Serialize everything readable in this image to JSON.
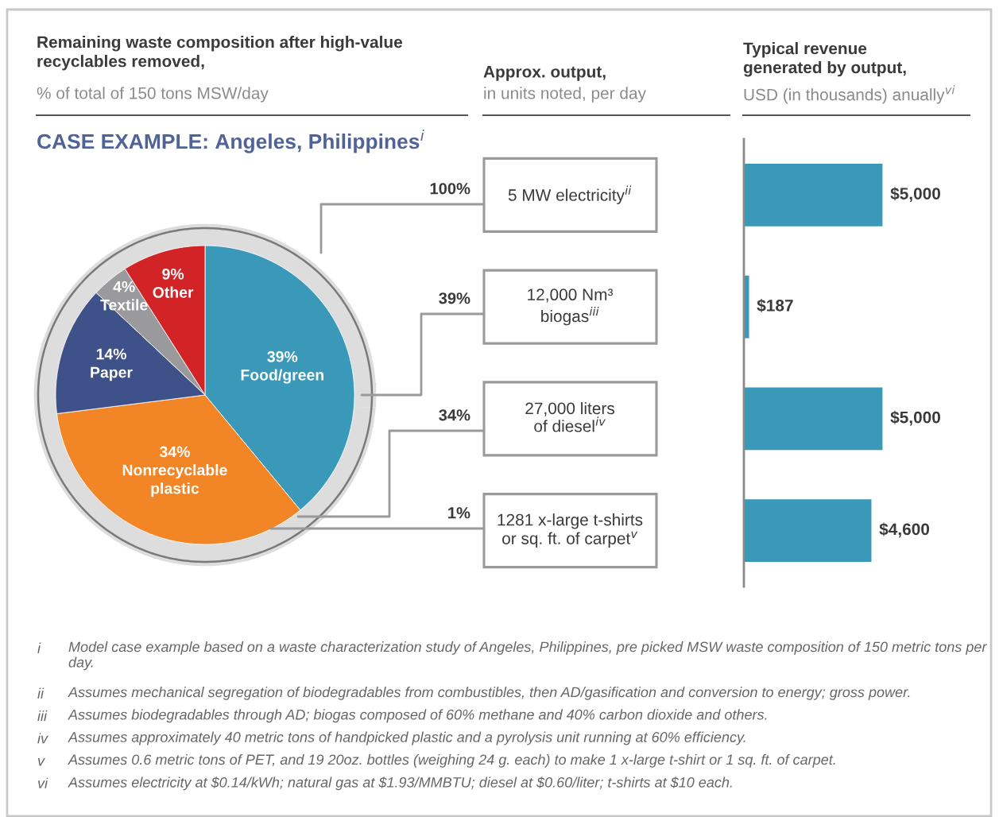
{
  "chart_data": [
    {
      "type": "pie",
      "title": "Remaining waste composition after high-value\nrecyclables removed,",
      "subtitle": "% of total of 150 tons MSW/day",
      "categories": [
        "Food/green",
        "Nonrecyclable\nplastic",
        "Paper",
        "Textile",
        "Other"
      ],
      "values": [
        39,
        34,
        14,
        4,
        9
      ],
      "value_labels": [
        "39%",
        "34%",
        "14%",
        "4%",
        "9%"
      ],
      "colors": [
        "#3a99b8",
        "#f28526",
        "#3f5189",
        "#9a9a9c",
        "#d22426"
      ],
      "annotations": [
        "CASE EXAMPLE: Angeles, Philippines$^{i}$",
        "i Model case example based on a waste characterization study of Angeles, Philippines, pre picked MSW waste composition of 150 metric tons per day.",
        "ii Assumes mechanical segregation of biodegradables from combustibles, then AD/gasification and conversion to energy; gross power.",
        "iii Assumes biodegradables through AD; biogas composed of 60% methane and 40% carbon dioxide and others.",
        "iv Assumes approximately 40 metric tons of handpicked plastic and a pyrolysis unit running at 60% efficiency.",
        "v Assumes 0.6 metric tons of PET, and 19 20oz. bottles (weighing 24 g. each) to make 1 x-large t-shirt or 1 sq. ft. of carpet.",
        "vi Assumes electricity at $0.14/kWh; natural gas at $1.93/MMBTU; diesel at $0.60/liter; t-shirts at $10 each."
      ]
    },
    {
      "type": "bar",
      "orientation": "horizontal",
      "title": "Typical revenue\ngenerated by output,",
      "subtitle": "USD (in thousands) anually$^{vi}$",
      "ylabel": "Approx. output,",
      "categories": [
        "5 MW electricity$^{ii}$",
        "12,000 Nm³\nbiogas$^{iii}$",
        "27,000 liters\nof diesel$^{iv}$",
        "1281 x-large t-shirts\nor sq. ft. of carpet$^{v}$"
      ],
      "values": [
        5000,
        187,
        5000,
        4600
      ],
      "value_labels": [
        "$5,000",
        "$187",
        "$5,000",
        "$4,600"
      ],
      "color": "#3a98b8",
      "annotations": [
        "in units noted, per day",
        "100%",
        "39%",
        "34%",
        "1%"
      ]
    }
  ]
}
